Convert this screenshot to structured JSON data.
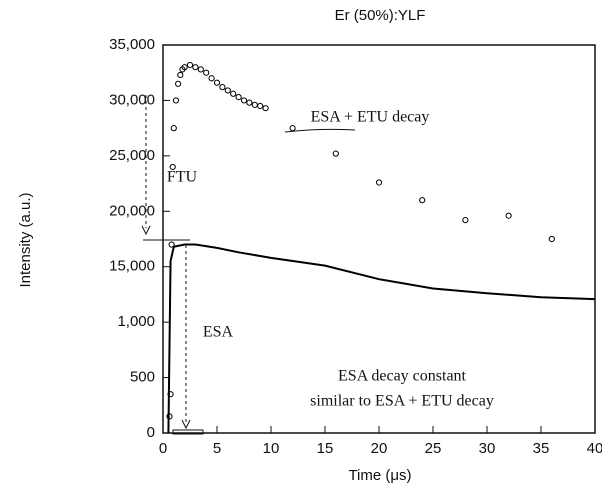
{
  "chart_data": {
    "type": "scatter-line",
    "title": "Er (50%):YLF",
    "x_label": "Time (μs)",
    "y_label": "Intensity (a.u.)",
    "xlim": [
      0,
      40
    ],
    "xticks": [
      0,
      5,
      10,
      15,
      20,
      25,
      30,
      35,
      40
    ],
    "ylim": [
      0,
      35000
    ],
    "yticks": [
      0,
      500,
      {
        "value": 1000,
        "label": "1,000"
      },
      {
        "value": 15000,
        "label": "15,000"
      },
      {
        "value": 20000,
        "label": "20,000"
      },
      {
        "value": 25000,
        "label": "25,000"
      },
      {
        "value": 30000,
        "label": "30,000"
      },
      {
        "value": 35000,
        "label": "35,000"
      }
    ],
    "annotations": [
      "ESA + ETU decay",
      "FTU",
      "ESA",
      "ESA decay constant",
      "similar to ESA + ETU decay"
    ],
    "series": [
      {
        "kind": "circles",
        "color": "#000000",
        "x": [
          0.6,
          0.7,
          0.8,
          0.9,
          1.0,
          1.2,
          1.4,
          1.6,
          1.8,
          2.0,
          2.5,
          3.0,
          3.5,
          4.0,
          4.5,
          5.0,
          5.5,
          6.0,
          6.5,
          7.0,
          7.5,
          8.0,
          8.5,
          9.0,
          9.5,
          12,
          16,
          20,
          24,
          28,
          32,
          36
        ],
        "values": [
          150,
          350,
          17000,
          24000,
          27500,
          30000,
          31500,
          32300,
          32800,
          33000,
          33200,
          33000,
          32800,
          32500,
          32000,
          31600,
          31200,
          30900,
          30600,
          30300,
          30000,
          29800,
          29600,
          29500,
          29300,
          27500,
          25200,
          22600,
          21000,
          19200,
          19600,
          17500
        ]
      },
      {
        "kind": "line",
        "color": "#000000",
        "x": [
          0.5,
          0.7,
          1,
          2,
          3,
          5,
          7,
          10,
          15,
          20,
          25,
          30,
          35,
          40
        ],
        "values": [
          0,
          15500,
          16800,
          17000,
          17000,
          16700,
          16300,
          15800,
          15100,
          11850,
          9500,
          8300,
          7300,
          6800
        ]
      }
    ]
  }
}
